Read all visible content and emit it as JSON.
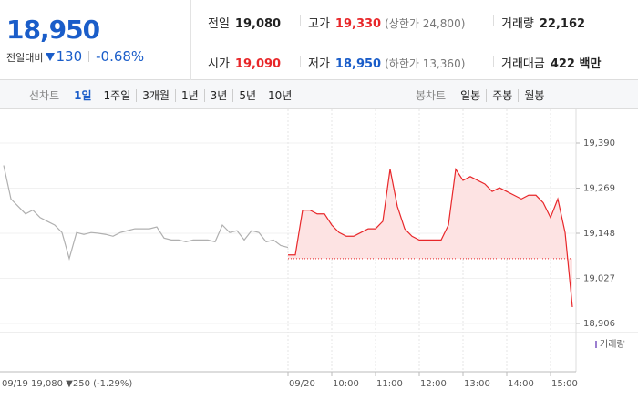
{
  "quote": {
    "price": "18,950",
    "change_label": "전일대비",
    "change": "130",
    "change_rate": "-0.68%"
  },
  "stats": [
    [
      {
        "label": "전일",
        "value": "19,080"
      },
      {
        "label": "고가",
        "value": "19,330",
        "note": "(상한가 24,800)"
      },
      {
        "label": "거래량",
        "value": "22,162"
      }
    ],
    [
      {
        "label": "시가",
        "value": "19,090"
      },
      {
        "label": "저가",
        "value": "18,950",
        "note": "(하한가 13,360)"
      },
      {
        "label": "거래대금",
        "value": "422 백만"
      }
    ]
  ],
  "line_tabs": {
    "label": "선차트",
    "items": [
      "1일",
      "1주일",
      "3개월",
      "1년",
      "3년",
      "5년",
      "10년"
    ]
  },
  "candle_tabs": {
    "label": "봉차트",
    "items": [
      "일봉",
      "주봉",
      "월봉"
    ]
  },
  "chart_data": {
    "type": "line",
    "categories": [
      null,
      null,
      null,
      null,
      null,
      null,
      null,
      null,
      null,
      null,
      null,
      null,
      null,
      null,
      null,
      null,
      null,
      null,
      null,
      null,
      null,
      null,
      null,
      null,
      null,
      null,
      null,
      null,
      null,
      null,
      null,
      null,
      null,
      null,
      null,
      null,
      null,
      null,
      null,
      "09/20",
      null,
      null,
      null,
      null,
      null,
      "10:00",
      null,
      null,
      null,
      null,
      null,
      "11:00",
      null,
      null,
      null,
      null,
      null,
      "12:00",
      null,
      null,
      null,
      null,
      null,
      "13:00",
      null,
      null,
      null,
      null,
      null,
      "14:00",
      null,
      null,
      null,
      null,
      null,
      "15:00",
      null,
      null,
      null
    ],
    "series": [
      {
        "color": "#b0b0b0",
        "values": [
          19330,
          19240,
          19220,
          19200,
          19210,
          19190,
          19180,
          19170,
          19150,
          19080,
          19150,
          19145,
          19150,
          19148,
          19145,
          19140,
          19150,
          19155,
          19160,
          19160,
          19160,
          19165,
          19135,
          19130,
          19130,
          19125,
          19130,
          19130,
          19130,
          19125,
          19170,
          19150,
          19155,
          19130,
          19155,
          19150,
          19125,
          19130,
          19115,
          19110,
          null,
          null,
          null,
          null,
          null,
          null,
          null,
          null,
          null,
          null,
          null,
          null,
          null,
          null,
          null,
          null,
          null,
          null,
          null,
          null,
          null,
          null,
          null,
          null,
          null,
          null,
          null,
          null,
          null,
          null,
          null,
          null,
          null,
          null,
          null,
          null,
          null,
          null,
          null
        ]
      },
      {
        "color": "#e8272a",
        "fill": "#fde3e3",
        "values": [
          null,
          null,
          null,
          null,
          null,
          null,
          null,
          null,
          null,
          null,
          null,
          null,
          null,
          null,
          null,
          null,
          null,
          null,
          null,
          null,
          null,
          null,
          null,
          null,
          null,
          null,
          null,
          null,
          null,
          null,
          null,
          null,
          null,
          null,
          null,
          null,
          null,
          null,
          null,
          19090,
          19090,
          19210,
          19210,
          19200,
          19200,
          19170,
          19150,
          19140,
          19140,
          19150,
          19160,
          19160,
          19180,
          19320,
          19220,
          19160,
          19140,
          19130,
          19130,
          19130,
          19130,
          19170,
          19320,
          19290,
          19300,
          19290,
          19280,
          19260,
          19270,
          19260,
          19250,
          19240,
          19250,
          19250,
          19230,
          19190,
          19240,
          19150,
          18950
        ]
      }
    ],
    "baseline": 19080,
    "ylim": [
      18906,
      19390
    ],
    "yticks": [
      {
        "value": 19390,
        "label": "19,390"
      },
      {
        "value": 19269,
        "label": "19,269"
      },
      {
        "value": 19148,
        "label": "19,148"
      },
      {
        "value": 19027,
        "label": "19,027"
      },
      {
        "value": 18906,
        "label": "18,906"
      }
    ],
    "annotation": "09/19 19,080 ▼250 (-1.29%)",
    "volume_legend": "거래량"
  }
}
